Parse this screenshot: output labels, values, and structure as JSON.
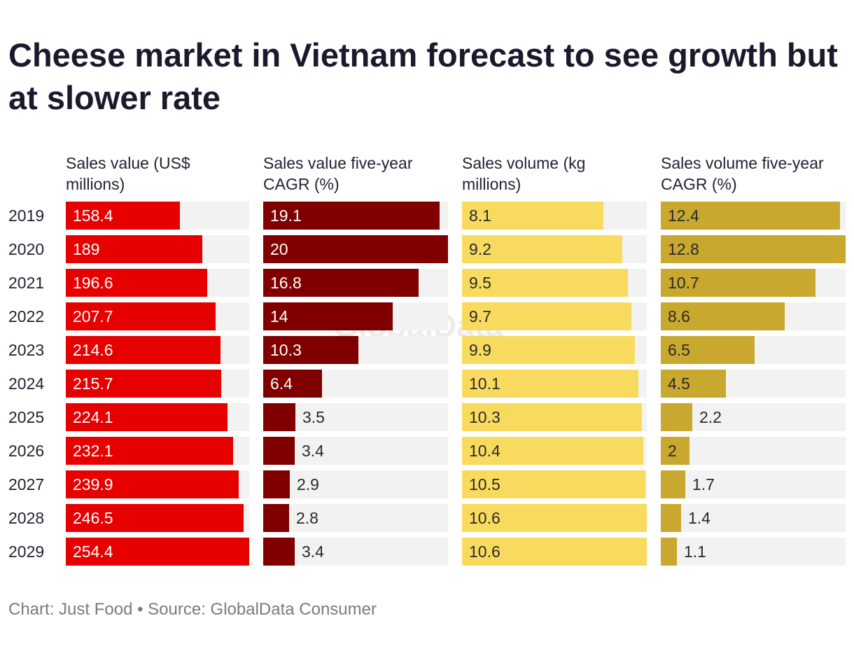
{
  "title": "Cheese market in Vietnam forecast to see growth but at slower rate",
  "watermark": "GlobalData",
  "footer": {
    "text": "Chart: Just Food • Source: GlobalData Consumer"
  },
  "chart_data": {
    "type": "bar",
    "orientation": "horizontal",
    "categories": [
      "2019",
      "2020",
      "2021",
      "2022",
      "2023",
      "2024",
      "2025",
      "2026",
      "2027",
      "2028",
      "2029"
    ],
    "series": [
      {
        "name": "Sales value (US$ millions)",
        "color": "#e60000",
        "label_color": "#ffffff",
        "max": 254.4,
        "values": [
          158.4,
          189,
          196.6,
          207.7,
          214.6,
          215.7,
          224.1,
          232.1,
          239.9,
          246.5,
          254.4
        ]
      },
      {
        "name": "Sales value five-year CAGR (%)",
        "color": "#800000",
        "label_color": "#ffffff",
        "max": 20,
        "values": [
          19.1,
          20,
          16.8,
          14,
          10.3,
          6.4,
          3.5,
          3.4,
          2.9,
          2.8,
          3.4
        ]
      },
      {
        "name": "Sales volume (kg millions)",
        "color": "#f8db5e",
        "label_color": "#2a2a2a",
        "max": 10.6,
        "values": [
          8.1,
          9.2,
          9.5,
          9.7,
          9.9,
          10.1,
          10.3,
          10.4,
          10.5,
          10.6,
          10.6
        ]
      },
      {
        "name": "Sales volume five-year CAGR (%)",
        "color": "#c8a82e",
        "label_color": "#2a2a2a",
        "max": 12.8,
        "values": [
          12.4,
          12.8,
          10.7,
          8.6,
          6.5,
          4.5,
          2.2,
          2,
          1.7,
          1.4,
          1.1
        ]
      }
    ],
    "track_color": "#f2f2f2"
  }
}
